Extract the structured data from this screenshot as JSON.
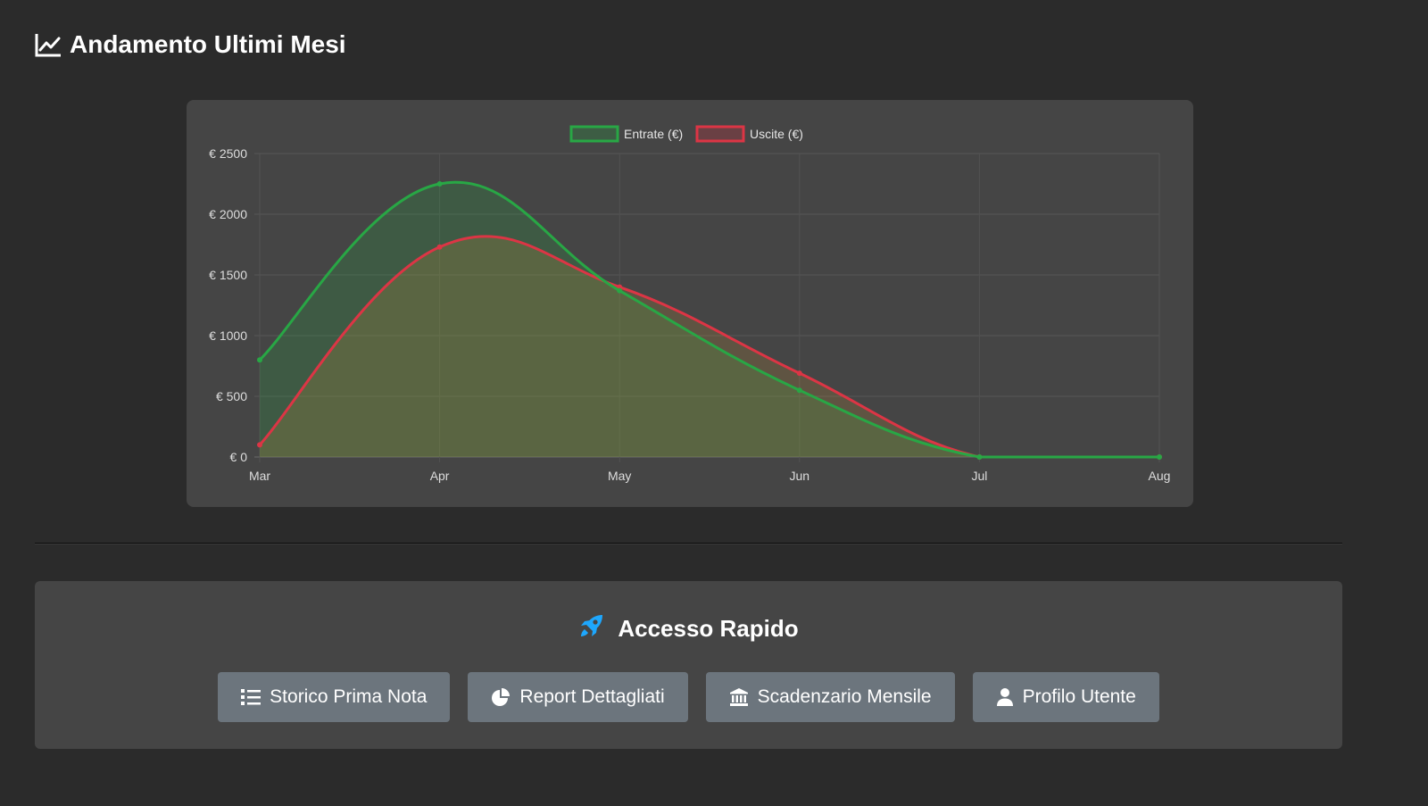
{
  "section": {
    "title": "Andamento Ultimi Mesi",
    "icon": "chart-line-icon"
  },
  "chart_data": {
    "type": "area",
    "categories": [
      "Mar",
      "Apr",
      "May",
      "Jun",
      "Jul",
      "Aug"
    ],
    "series": [
      {
        "name": "Entrate (€)",
        "values": [
          800,
          2250,
          1370,
          550,
          0,
          0
        ],
        "color": "#28a745"
      },
      {
        "name": "Uscite (€)",
        "values": [
          100,
          1730,
          1400,
          690,
          0,
          0
        ],
        "color": "#dc3545"
      }
    ],
    "ylim": [
      0,
      2500
    ],
    "yticks": [
      0,
      500,
      1000,
      1500,
      2000,
      2500
    ],
    "ytick_labels": [
      "€ 0",
      "€ 500",
      "€ 1000",
      "€ 1500",
      "€ 2000",
      "€ 2500"
    ],
    "legend": "top-center",
    "grid": true,
    "xlabel": "",
    "ylabel": ""
  },
  "quick_access": {
    "title": "Accesso Rapido",
    "icon": "rocket-icon",
    "icon_color": "#1ea7fd",
    "buttons": [
      {
        "label": "Storico Prima Nota",
        "icon": "list-icon"
      },
      {
        "label": "Report Dettagliati",
        "icon": "pie-chart-icon"
      },
      {
        "label": "Scadenzario Mensile",
        "icon": "bank-icon"
      },
      {
        "label": "Profilo Utente",
        "icon": "user-icon"
      }
    ]
  },
  "colors": {
    "background": "#2b2b2b",
    "card": "#454545",
    "button": "#6c757d"
  }
}
